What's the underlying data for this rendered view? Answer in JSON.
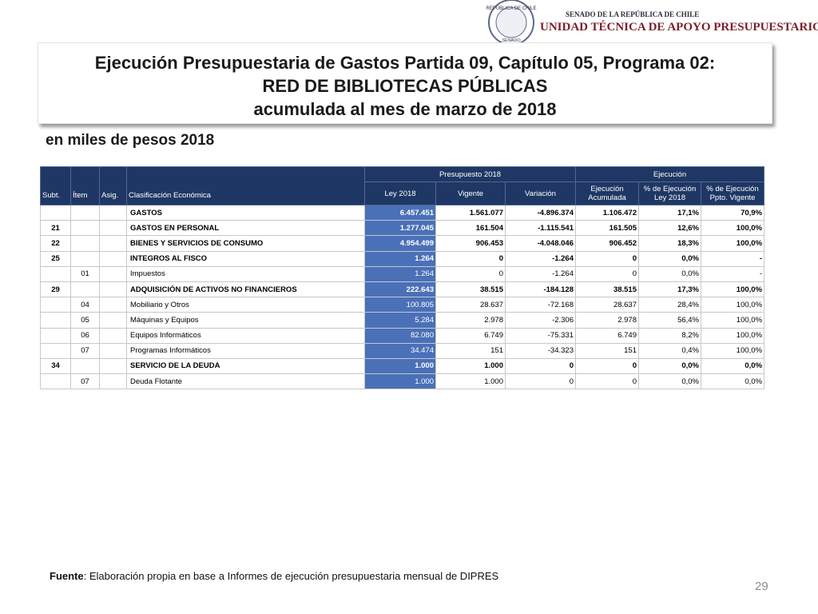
{
  "logo": {
    "seal_top": "REPÚBLICA DE CHILE",
    "seal_bottom": "SENADO",
    "line1": "SENADO DE LA REPÚBLICA DE CHILE",
    "line2": "UNIDAD TÉCNICA DE APOYO PRESUPUESTARIO"
  },
  "header": {
    "title_lines": [
      "Ejecución Presupuestaria de Gastos Partida 09, Capítulo 05, Programa 02:",
      "RED DE BIBLIOTECAS PÚBLICAS",
      "acumulada al mes de marzo de 2018"
    ],
    "subtitle": "en miles de pesos 2018"
  },
  "table": {
    "group_headers": [
      "Presupuesto 2018",
      "Ejecución"
    ],
    "columns": [
      "Subt.",
      "Ítem",
      "Asig.",
      "Clasificación Económica",
      "Ley 2018",
      "Vigente",
      "Variación",
      "Ejecución Acumulada",
      "% de Ejecución Ley 2018",
      "% de Ejecución Ppto. Vigente"
    ],
    "rows": [
      {
        "bold": true,
        "clasificacion": "GASTOS",
        "values": [
          "6.457.451",
          "1.561.077",
          "-4.896.374",
          "1.106.472",
          "17,1%",
          "70,9%"
        ]
      },
      {
        "bold": true,
        "subt": "21",
        "clasificacion": "GASTOS EN PERSONAL",
        "values": [
          "1.277.045",
          "161.504",
          "-1.115.541",
          "161.505",
          "12,6%",
          "100,0%"
        ]
      },
      {
        "bold": true,
        "subt": "22",
        "clasificacion": "BIENES Y SERVICIOS DE CONSUMO",
        "values": [
          "4.954.499",
          "906.453",
          "-4.048.046",
          "906.452",
          "18,3%",
          "100,0%"
        ]
      },
      {
        "bold": true,
        "subt": "25",
        "clasificacion": "INTEGROS AL FISCO",
        "values": [
          "1.264",
          "0",
          "-1.264",
          "0",
          "0,0%",
          "-"
        ]
      },
      {
        "bold": false,
        "item": "01",
        "clasificacion": "Impuestos",
        "values": [
          "1.264",
          "0",
          "-1.264",
          "0",
          "0,0%",
          "-"
        ]
      },
      {
        "bold": true,
        "subt": "29",
        "clasificacion": "ADQUISICIÓN DE ACTIVOS NO FINANCIEROS",
        "values": [
          "222.643",
          "38.515",
          "-184.128",
          "38.515",
          "17,3%",
          "100,0%"
        ]
      },
      {
        "bold": false,
        "item": "04",
        "clasificacion": "Mobiliario y Otros",
        "values": [
          "100.805",
          "28.637",
          "-72.168",
          "28.637",
          "28,4%",
          "100,0%"
        ]
      },
      {
        "bold": false,
        "item": "05",
        "clasificacion": "Máquinas y Equipos",
        "values": [
          "5.284",
          "2.978",
          "-2.306",
          "2.978",
          "56,4%",
          "100,0%"
        ]
      },
      {
        "bold": false,
        "item": "06",
        "clasificacion": "Equipos Informáticos",
        "values": [
          "82.080",
          "6.749",
          "-75.331",
          "6.749",
          "8,2%",
          "100,0%"
        ]
      },
      {
        "bold": false,
        "item": "07",
        "clasificacion": "Programas Informáticos",
        "values": [
          "34.474",
          "151",
          "-34.323",
          "151",
          "0,4%",
          "100,0%"
        ]
      },
      {
        "bold": true,
        "subt": "34",
        "clasificacion": "SERVICIO DE LA DEUDA",
        "values": [
          "1.000",
          "1.000",
          "0",
          "0",
          "0,0%",
          "0,0%"
        ]
      },
      {
        "bold": false,
        "item": "07",
        "clasificacion": "Deuda Flotante",
        "values": [
          "1.000",
          "1.000",
          "0",
          "0",
          "0,0%",
          "0,0%"
        ]
      }
    ]
  },
  "footer": {
    "label": "Fuente",
    "text": ": Elaboración propia en base  a Informes de ejecución presupuestaria mensual de DIPRES"
  },
  "page_number": "29"
}
